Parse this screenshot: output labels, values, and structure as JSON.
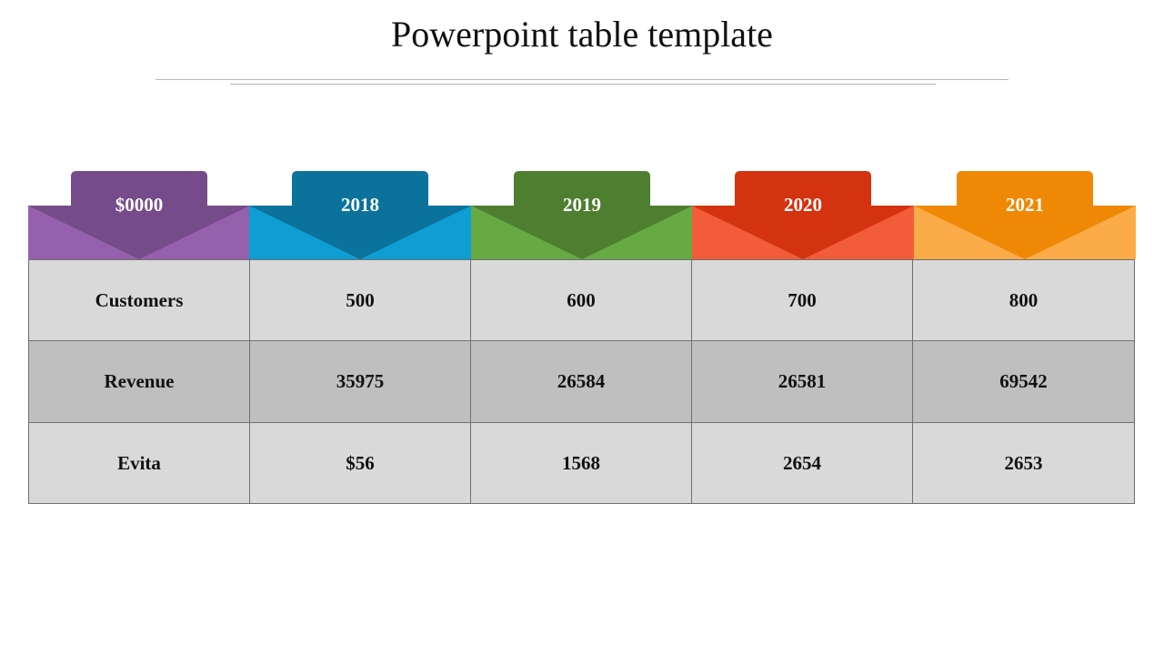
{
  "slide": {
    "title": "Powerpoint table template"
  },
  "columns": [
    {
      "label": "$0000",
      "tab_color": "#754b89",
      "band_color": "#9560ac"
    },
    {
      "label": "2018",
      "tab_color": "#0b739b",
      "band_color": "#0f9ed3"
    },
    {
      "label": "2019",
      "tab_color": "#4e7f31",
      "band_color": "#67a943"
    },
    {
      "label": "2020",
      "tab_color": "#d4330f",
      "band_color": "#f25c3b"
    },
    {
      "label": "2021",
      "tab_color": "#ef8905",
      "band_color": "#fbac49"
    }
  ],
  "rows": [
    {
      "label": "Customers",
      "cells": [
        "500",
        "600",
        "700",
        "800"
      ]
    },
    {
      "label": "Revenue",
      "cells": [
        "35975",
        "26584",
        "26581",
        "69542"
      ]
    },
    {
      "label": "Evita",
      "cells": [
        "$56",
        "1568",
        "2654",
        "2653"
      ]
    }
  ]
}
